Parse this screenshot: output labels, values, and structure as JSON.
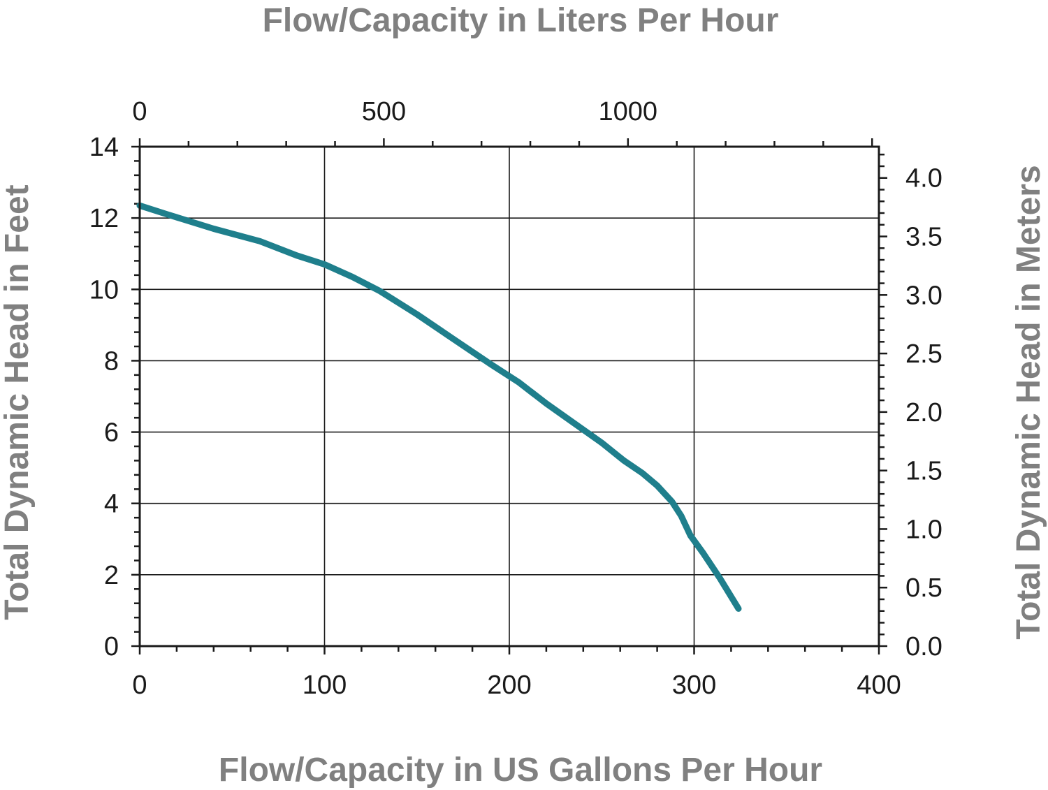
{
  "chart_data": {
    "type": "line",
    "title": "",
    "xlabel": "Flow/Capacity in US Gallons Per Hour",
    "x2label": "Flow/Capacity in Liters Per Hour",
    "ylabel": "Total Dynamic Head in Feet",
    "y2label": "Total Dynamic Head in Meters",
    "xlim": [
      0,
      400
    ],
    "ylim": [
      0,
      14
    ],
    "x2lim": [
      0,
      1514
    ],
    "y2lim": [
      0,
      4.267
    ],
    "grid": true,
    "line_color": "#1f7f8c",
    "x_ticks": [
      "0",
      "100",
      "200",
      "300",
      "400"
    ],
    "x_tick_values": [
      0,
      100,
      200,
      300,
      400
    ],
    "y_ticks": [
      "0",
      "2",
      "4",
      "6",
      "8",
      "10",
      "12",
      "14"
    ],
    "y_tick_values": [
      0,
      2,
      4,
      6,
      8,
      10,
      12,
      14
    ],
    "x2_ticks": [
      "0",
      "500",
      "1000"
    ],
    "x2_tick_values": [
      0,
      500,
      1000
    ],
    "y2_ticks": [
      "0.0",
      "0.5",
      "1.0",
      "1.5",
      "2.0",
      "2.5",
      "3.0",
      "3.5",
      "4.0"
    ],
    "y2_tick_values": [
      0.0,
      0.5,
      1.0,
      1.5,
      2.0,
      2.5,
      3.0,
      3.5,
      4.0
    ],
    "series": [
      {
        "x": [
          0,
          15,
          40,
          65,
          85,
          100,
          115,
          130,
          150,
          170,
          190,
          205,
          220,
          235,
          250,
          262,
          272,
          280,
          288,
          293,
          298,
          305,
          314,
          324
        ],
        "y": [
          12.35,
          12.1,
          11.7,
          11.35,
          10.95,
          10.7,
          10.35,
          9.95,
          9.3,
          8.6,
          7.9,
          7.4,
          6.8,
          6.25,
          5.7,
          5.2,
          4.85,
          4.5,
          4.05,
          3.65,
          3.1,
          2.6,
          1.9,
          1.05
        ]
      }
    ]
  }
}
